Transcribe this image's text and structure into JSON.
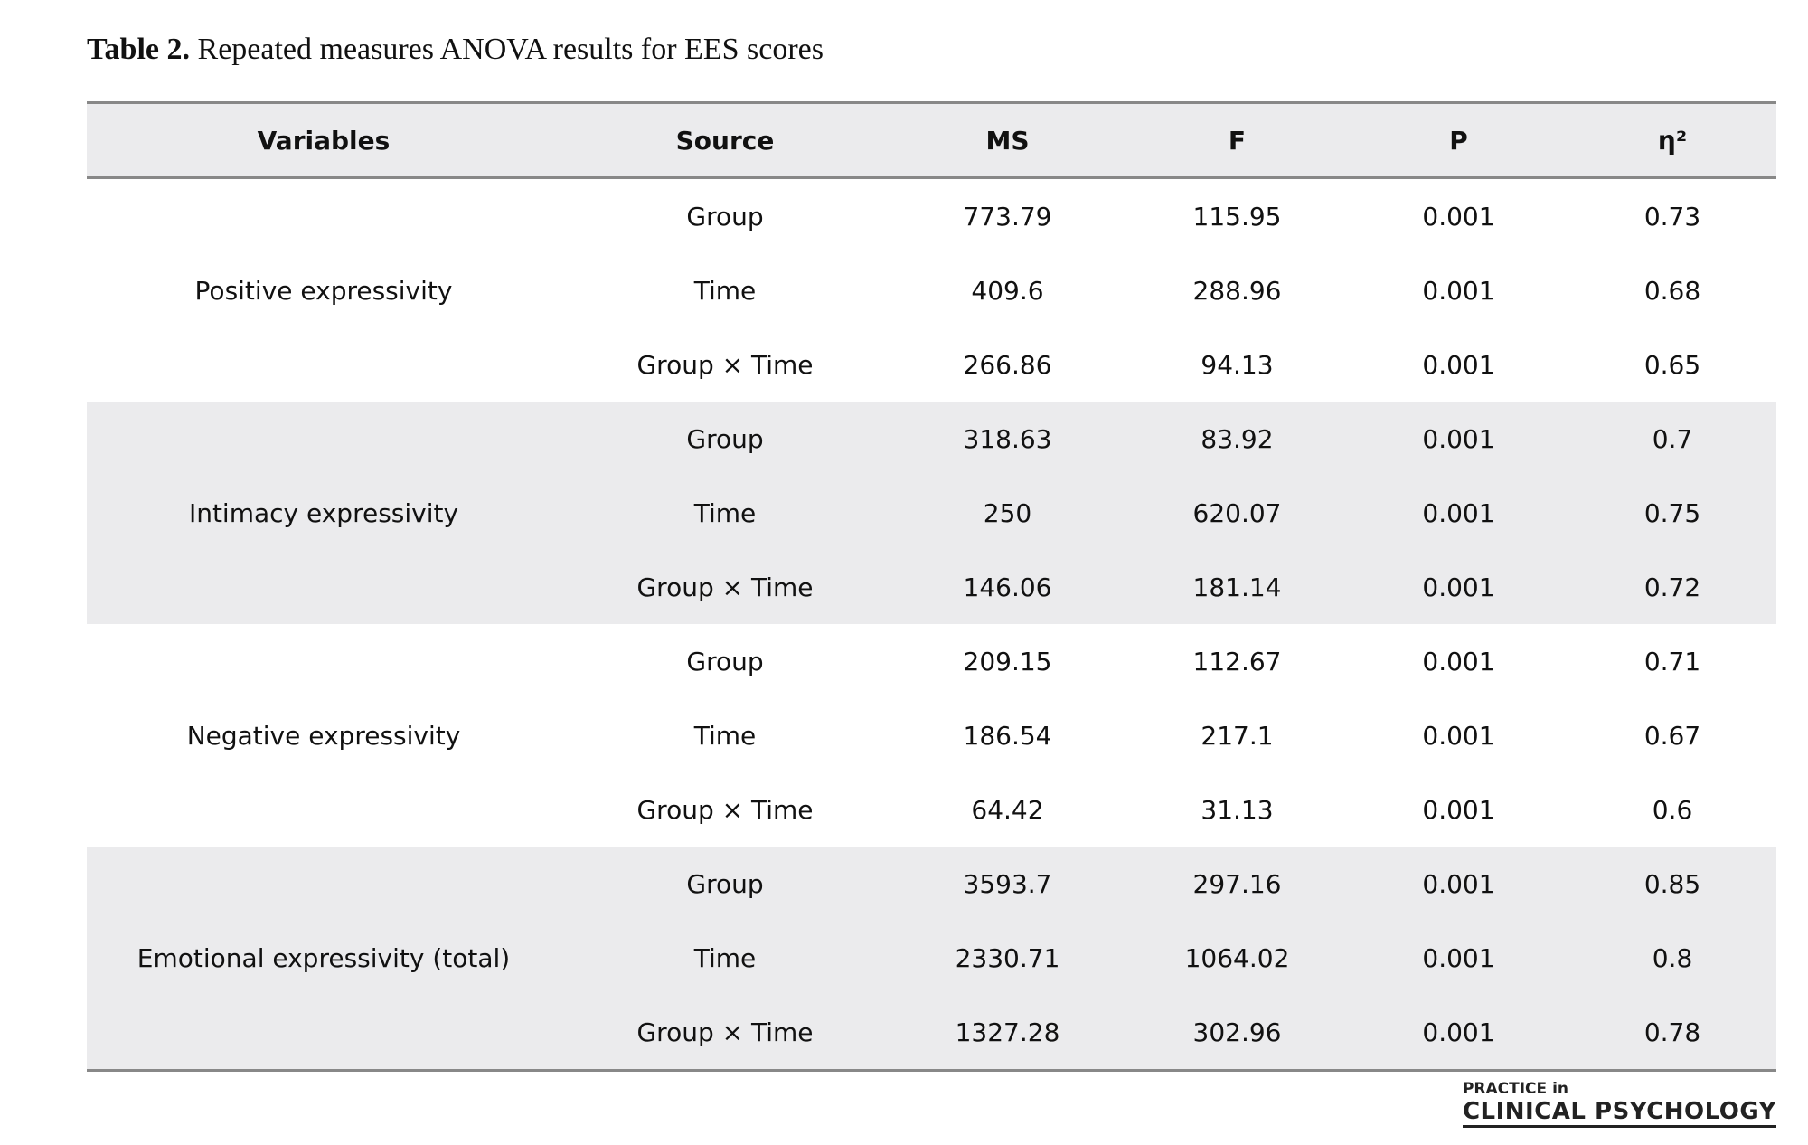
{
  "title": {
    "label": "Table 2.",
    "text": "Repeated measures ANOVA results for EES scores"
  },
  "table": {
    "headers": [
      "Variables",
      "Source",
      "MS",
      "F",
      "P",
      "η²"
    ],
    "groups": [
      {
        "variable": "Positive expressivity",
        "rows": [
          [
            "Group",
            "773.79",
            "115.95",
            "0.001",
            "0.73"
          ],
          [
            "Time",
            "409.6",
            "288.96",
            "0.001",
            "0.68"
          ],
          [
            "Group × Time",
            "266.86",
            "94.13",
            "0.001",
            "0.65"
          ]
        ]
      },
      {
        "variable": "Intimacy expressivity",
        "rows": [
          [
            "Group",
            "318.63",
            "83.92",
            "0.001",
            "0.7"
          ],
          [
            "Time",
            "250",
            "620.07",
            "0.001",
            "0.75"
          ],
          [
            "Group × Time",
            "146.06",
            "181.14",
            "0.001",
            "0.72"
          ]
        ]
      },
      {
        "variable": "Negative expressivity",
        "rows": [
          [
            "Group",
            "209.15",
            "112.67",
            "0.001",
            "0.71"
          ],
          [
            "Time",
            "186.54",
            "217.1",
            "0.001",
            "0.67"
          ],
          [
            "Group × Time",
            "64.42",
            "31.13",
            "0.001",
            "0.6"
          ]
        ]
      },
      {
        "variable": "Emotional expressivity (total)",
        "rows": [
          [
            "Group",
            "3593.7",
            "297.16",
            "0.001",
            "0.85"
          ],
          [
            "Time",
            "2330.71",
            "1064.02",
            "0.001",
            "0.8"
          ],
          [
            "Group × Time",
            "1327.28",
            "302.96",
            "0.001",
            "0.78"
          ]
        ]
      }
    ]
  },
  "logo": {
    "top": "PRACTICE in",
    "bottom": "CLINICAL PSYCHOLOGY"
  }
}
